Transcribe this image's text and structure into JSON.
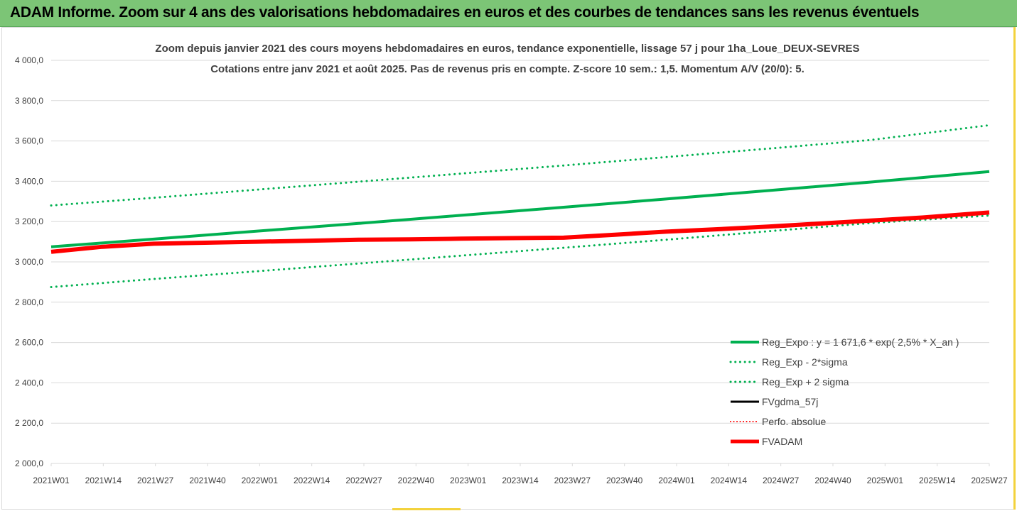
{
  "header": {
    "banner_title": "ADAM Informe. Zoom sur 4 ans des valorisations hebdomadaires en euros et des courbes de tendances sans les revenus éventuels"
  },
  "chart_data": {
    "type": "line",
    "title": "Zoom depuis janvier 2021 des cours moyens hebdomadaires en euros, tendance exponentielle, lissage 57 j pour 1ha_Loue_DEUX-SEVRES",
    "subtitle": "Cotations entre janv 2021 et août 2025.  Pas de revenus pris en compte. Z-score 10 sem.: 1,5. Momentum A/V (20/0): 5.",
    "xlabel": "",
    "ylabel": "",
    "ylim": [
      2000,
      4000
    ],
    "y_ticks": [
      "2 000,0",
      "2 200,0",
      "2 400,0",
      "2 600,0",
      "2 800,0",
      "3 000,0",
      "3 200,0",
      "3 400,0",
      "3 600,0",
      "3 800,0",
      "4 000,0"
    ],
    "x_ticks": [
      "2021W01",
      "2021W14",
      "2021W27",
      "2021W40",
      "2022W01",
      "2022W14",
      "2022W27",
      "2022W40",
      "2023W01",
      "2023W14",
      "2023W27",
      "2023W40",
      "2024W01",
      "2024W14",
      "2024W27",
      "2024W40",
      "2025W01",
      "2025W14",
      "2025W27"
    ],
    "x_range_weeks": [
      0,
      238
    ],
    "grid": "horizontal",
    "legend_position": "bottom-right",
    "series": [
      {
        "name": "Reg_Expo : y = 1 671,6 * exp( 2,5% *  X_an )",
        "color": "#00b050",
        "style": "solid",
        "width": 4,
        "x": [
          0,
          26,
          52,
          78,
          104,
          130,
          156,
          182,
          208,
          238
        ],
        "values": [
          3075,
          3113,
          3152,
          3191,
          3231,
          3271,
          3312,
          3354,
          3396,
          3448
        ]
      },
      {
        "name": "Reg_Exp - 2*sigma",
        "color": "#00b050",
        "style": "dotted",
        "width": 3,
        "x": [
          0,
          26,
          52,
          78,
          104,
          130,
          156,
          182,
          208,
          238
        ],
        "values": [
          2875,
          2915,
          2953,
          2992,
          3031,
          3070,
          3110,
          3152,
          3193,
          3230
        ]
      },
      {
        "name": "Reg_Exp + 2 sigma",
        "color": "#00b050",
        "style": "dotted",
        "width": 3,
        "x": [
          0,
          26,
          52,
          78,
          104,
          130,
          156,
          182,
          208,
          238
        ],
        "values": [
          3280,
          3318,
          3358,
          3398,
          3438,
          3478,
          3520,
          3562,
          3605,
          3678
        ]
      },
      {
        "name": "FVgdma_57j",
        "color": "#000000",
        "style": "solid",
        "width": 3,
        "x": [],
        "values": []
      },
      {
        "name": "Perfo. absolue",
        "color": "#ff0000",
        "style": "dotted",
        "width": 2,
        "x": [],
        "values": []
      },
      {
        "name": "FVADAM",
        "color": "#ff0000",
        "style": "solid",
        "width": 6,
        "x": [
          0,
          13,
          26,
          39,
          52,
          65,
          78,
          91,
          104,
          117,
          130,
          143,
          156,
          169,
          182,
          195,
          208,
          221,
          238
        ],
        "values": [
          3050,
          3075,
          3090,
          3095,
          3100,
          3105,
          3110,
          3112,
          3115,
          3118,
          3120,
          3135,
          3150,
          3162,
          3175,
          3190,
          3205,
          3220,
          3245
        ]
      }
    ]
  }
}
